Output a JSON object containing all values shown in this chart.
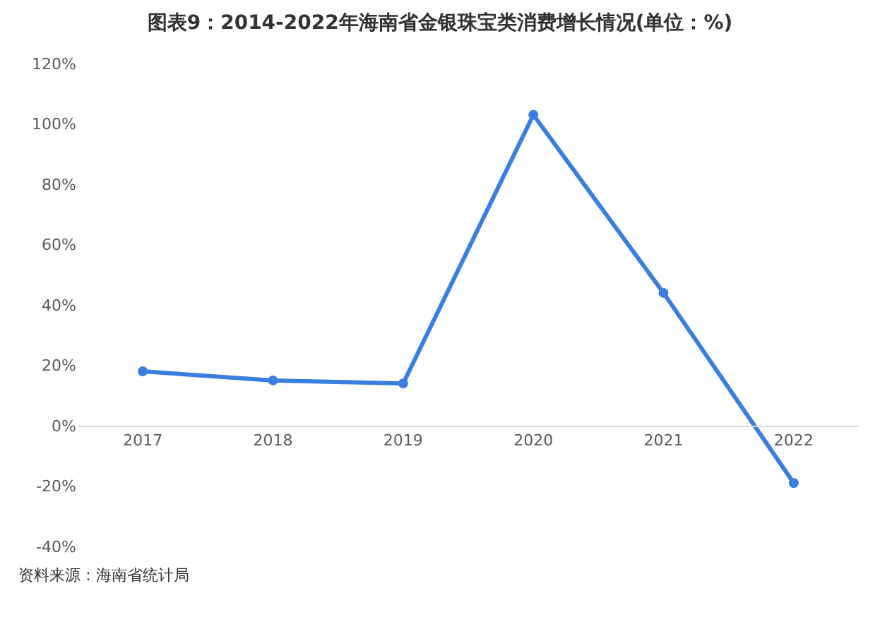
{
  "chart_data": {
    "type": "line",
    "title": "图表9：2014-2022年海南省金银珠宝类消费增长情况(单位：%)",
    "categories": [
      "2017",
      "2018",
      "2019",
      "2020",
      "2021",
      "2022"
    ],
    "series": [
      {
        "color": "#3a7fe0",
        "values": [
          18,
          15,
          14,
          103,
          44,
          -19
        ]
      }
    ],
    "ylim": [
      -40,
      120
    ],
    "yticks": [
      {
        "value": -40,
        "label": "-40%"
      },
      {
        "value": -20,
        "label": "-20%"
      },
      {
        "value": 0,
        "label": "0%"
      },
      {
        "value": 20,
        "label": "20%"
      },
      {
        "value": 40,
        "label": "40%"
      },
      {
        "value": 60,
        "label": "60%"
      },
      {
        "value": 80,
        "label": "80%"
      },
      {
        "value": 100,
        "label": "100%"
      },
      {
        "value": 120,
        "label": "120%"
      }
    ],
    "legend": false,
    "marker": "circle",
    "line_style": "solid",
    "annotations": [
      "资料来源：海南省统计局"
    ]
  }
}
